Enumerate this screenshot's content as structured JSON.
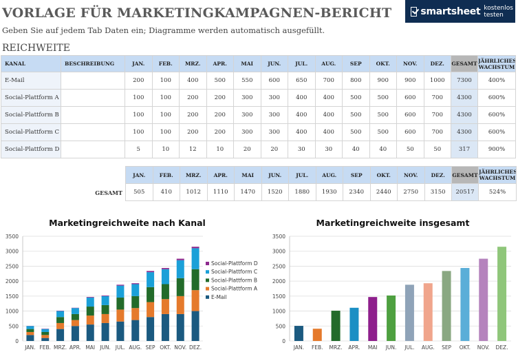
{
  "header": {
    "title": "VORLAGE FÜR MARKETINGKAMPAGNEN-BERICHT",
    "subtitle": "Geben Sie auf jedem Tab Daten ein; Diagramme werden automatisch ausgefüllt.",
    "section": "REICHWEITE",
    "logo_brand": "smartsheet",
    "logo_cta": "kostenlos testen"
  },
  "table": {
    "col_channel": "KANAL",
    "col_desc": "BESCHREIBUNG",
    "months": [
      "JAN.",
      "FEB.",
      "MRZ.",
      "APR.",
      "MAI",
      "JUN.",
      "JUL.",
      "AUG.",
      "SEP",
      "OKT.",
      "NOV.",
      "DEZ."
    ],
    "col_total": "GESAMT",
    "col_growth": "JÄHRLICHES WACHSTUM",
    "rows": [
      {
        "name": "E-Mail",
        "desc": "",
        "values": [
          200,
          100,
          400,
          500,
          550,
          600,
          650,
          700,
          800,
          900,
          900,
          1000
        ],
        "total": "7300",
        "growth": "400%"
      },
      {
        "name": "Social-Plattform A",
        "desc": "",
        "values": [
          100,
          100,
          200,
          200,
          300,
          300,
          400,
          400,
          500,
          500,
          600,
          700
        ],
        "total": "4300",
        "growth": "600%"
      },
      {
        "name": "Social-Plattform B",
        "desc": "",
        "values": [
          100,
          100,
          200,
          200,
          300,
          300,
          400,
          400,
          500,
          500,
          600,
          700
        ],
        "total": "4300",
        "growth": "600%"
      },
      {
        "name": "Social-Plattform C",
        "desc": "",
        "values": [
          100,
          100,
          200,
          200,
          300,
          300,
          400,
          400,
          500,
          500,
          600,
          700
        ],
        "total": "4300",
        "growth": "600%"
      },
      {
        "name": "Social-Plattform D",
        "desc": "",
        "values": [
          5,
          10,
          12,
          10,
          20,
          20,
          30,
          30,
          40,
          40,
          50,
          50
        ],
        "total": "317",
        "growth": "900%"
      }
    ]
  },
  "totals": {
    "label": "GESAMT",
    "values": [
      505,
      410,
      1012,
      1110,
      1470,
      1520,
      1880,
      1930,
      2340,
      2440,
      2750,
      3150
    ],
    "total": "20517",
    "growth": "524%"
  },
  "chart_data": [
    {
      "type": "bar",
      "stacked": true,
      "title": "Marketingreichweite nach Kanal",
      "categories": [
        "JAN.",
        "FEB.",
        "MRZ.",
        "APR.",
        "MAI",
        "JUN.",
        "JUL.",
        "AUG.",
        "SEP",
        "OKT.",
        "NOV.",
        "DEZ."
      ],
      "ylim": [
        0,
        3500
      ],
      "yticks": [
        0,
        500,
        1000,
        1500,
        2000,
        2500,
        3000,
        3500
      ],
      "legend": "right",
      "series": [
        {
          "name": "E-Mail",
          "color": "#1b5a80",
          "values": [
            200,
            100,
            400,
            500,
            550,
            600,
            650,
            700,
            800,
            900,
            900,
            1000
          ]
        },
        {
          "name": "Social-Plattform A",
          "color": "#e57a2c",
          "values": [
            100,
            100,
            200,
            200,
            300,
            300,
            400,
            400,
            500,
            500,
            600,
            700
          ]
        },
        {
          "name": "Social-Plattform B",
          "color": "#236b2a",
          "values": [
            100,
            100,
            200,
            200,
            300,
            300,
            400,
            400,
            500,
            500,
            600,
            700
          ]
        },
        {
          "name": "Social-Plattform C",
          "color": "#1ba0d8",
          "values": [
            100,
            100,
            200,
            200,
            300,
            300,
            400,
            400,
            500,
            500,
            600,
            700
          ]
        },
        {
          "name": "Social-Plattform D",
          "color": "#8e2a8e",
          "values": [
            5,
            10,
            12,
            10,
            20,
            20,
            30,
            30,
            40,
            40,
            50,
            50
          ]
        }
      ]
    },
    {
      "type": "bar",
      "title": "Marketingreichweite insgesamt",
      "categories": [
        "JAN.",
        "FEB.",
        "MRZ.",
        "APR.",
        "MAI",
        "JUN.",
        "JUL.",
        "AUG.",
        "SEP",
        "OKT.",
        "NOV.",
        "DEZ."
      ],
      "values": [
        505,
        410,
        1012,
        1110,
        1470,
        1520,
        1880,
        1930,
        2340,
        2440,
        2750,
        3150
      ],
      "colors": [
        "#1b5a80",
        "#e57a2c",
        "#236b2a",
        "#1b8fc4",
        "#8e1f8c",
        "#4ea040",
        "#8fa3b8",
        "#f0a58c",
        "#8aa882",
        "#5aaed8",
        "#b583bd",
        "#8fc67a"
      ],
      "ylim": [
        0,
        3500
      ],
      "yticks": [
        0,
        500,
        1000,
        1500,
        2000,
        2500,
        3000,
        3500
      ]
    }
  ]
}
